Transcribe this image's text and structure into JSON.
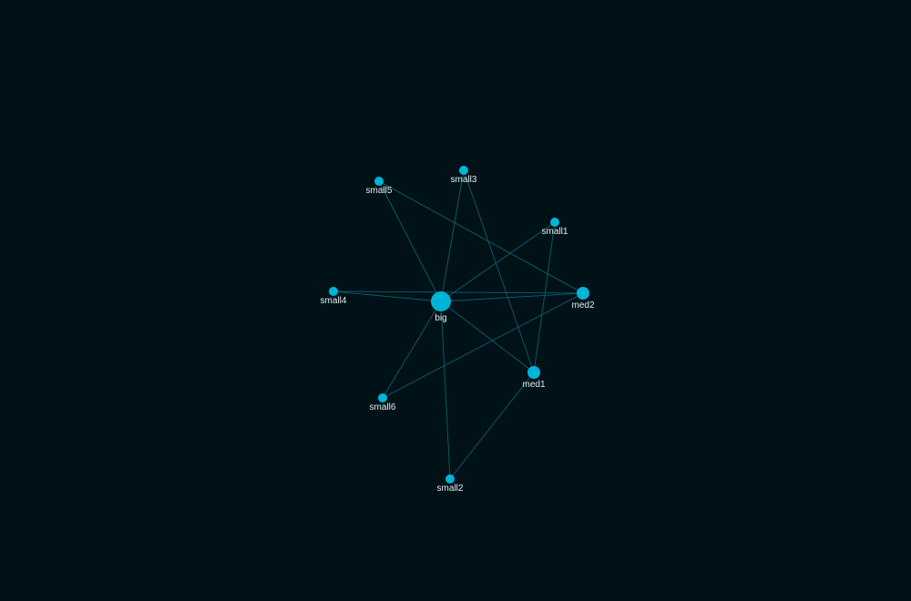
{
  "graph": {
    "colors": {
      "background": "#001218",
      "node": "#00b4d8",
      "edge": "#0e6b80",
      "label": "#dfeef2"
    },
    "nodes": [
      {
        "id": "big",
        "label": "big",
        "size": "large"
      },
      {
        "id": "med1",
        "label": "med1",
        "size": "medium"
      },
      {
        "id": "med2",
        "label": "med2",
        "size": "medium"
      },
      {
        "id": "small1",
        "label": "small1",
        "size": "small"
      },
      {
        "id": "small2",
        "label": "small2",
        "size": "small"
      },
      {
        "id": "small3",
        "label": "small3",
        "size": "small"
      },
      {
        "id": "small4",
        "label": "small4",
        "size": "small"
      },
      {
        "id": "small5",
        "label": "small5",
        "size": "small"
      },
      {
        "id": "small6",
        "label": "small6",
        "size": "small"
      }
    ],
    "edges": [
      {
        "source": "big",
        "target": "small5"
      },
      {
        "source": "big",
        "target": "small3"
      },
      {
        "source": "big",
        "target": "small1"
      },
      {
        "source": "big",
        "target": "small4"
      },
      {
        "source": "big",
        "target": "med2"
      },
      {
        "source": "big",
        "target": "med1"
      },
      {
        "source": "big",
        "target": "small6"
      },
      {
        "source": "big",
        "target": "small2"
      },
      {
        "source": "small5",
        "target": "med2"
      },
      {
        "source": "small3",
        "target": "med1"
      },
      {
        "source": "small1",
        "target": "med1"
      },
      {
        "source": "small4",
        "target": "med2"
      },
      {
        "source": "med2",
        "target": "small6"
      },
      {
        "source": "med1",
        "target": "small2"
      }
    ]
  }
}
